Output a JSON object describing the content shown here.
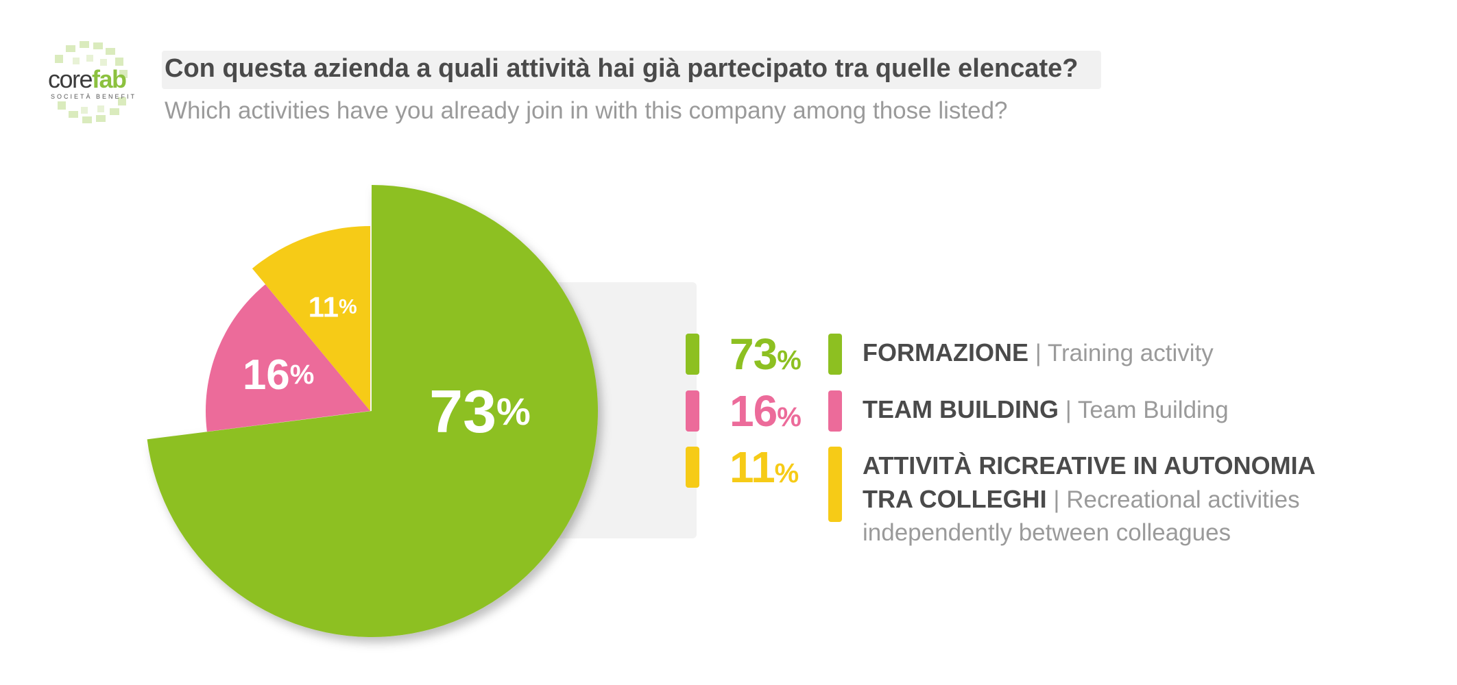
{
  "logo": {
    "text_core": "core",
    "text_fab": "fab",
    "tagline": "SOCIETÀ BENEFIT"
  },
  "header": {
    "title": "Con questa azienda a quali attività hai già partecipato tra quelle elencate?",
    "subtitle": "Which activities have you already join in with this company among those listed?"
  },
  "colors": {
    "green": "#8dc021",
    "pink": "#ec6b9a",
    "yellow": "#f6cb17"
  },
  "legend": [
    {
      "value": "73",
      "unit": "%",
      "label": "FORMAZIONE",
      "separator": " | ",
      "translation": "Training activity",
      "color": "#8dc021"
    },
    {
      "value": "16",
      "unit": "%",
      "label": "TEAM BUILDING",
      "separator": " | ",
      "translation": "Team Building",
      "color": "#ec6b9a"
    },
    {
      "value": "11",
      "unit": "%",
      "label": "ATTIVITÀ RICREATIVE IN AUTONOMIA TRA COLLEGHI",
      "separator": " | ",
      "translation": "Recreational activities independently between colleagues",
      "color": "#f6cb17"
    }
  ],
  "chart_data": {
    "type": "pie",
    "categories": [
      "FORMAZIONE",
      "TEAM BUILDING",
      "ATTIVITÀ RICREATIVE IN AUTONOMIA TRA COLLEGHI"
    ],
    "values": [
      73,
      16,
      11
    ],
    "unit": "%",
    "slice_labels": [
      {
        "value": "73",
        "unit": "%"
      },
      {
        "value": "16",
        "unit": "%"
      },
      {
        "value": "11",
        "unit": "%"
      }
    ],
    "colors": [
      "#8dc021",
      "#ec6b9a",
      "#f6cb17"
    ],
    "exploded_slice": "FORMAZIONE",
    "legend_position": "right"
  }
}
